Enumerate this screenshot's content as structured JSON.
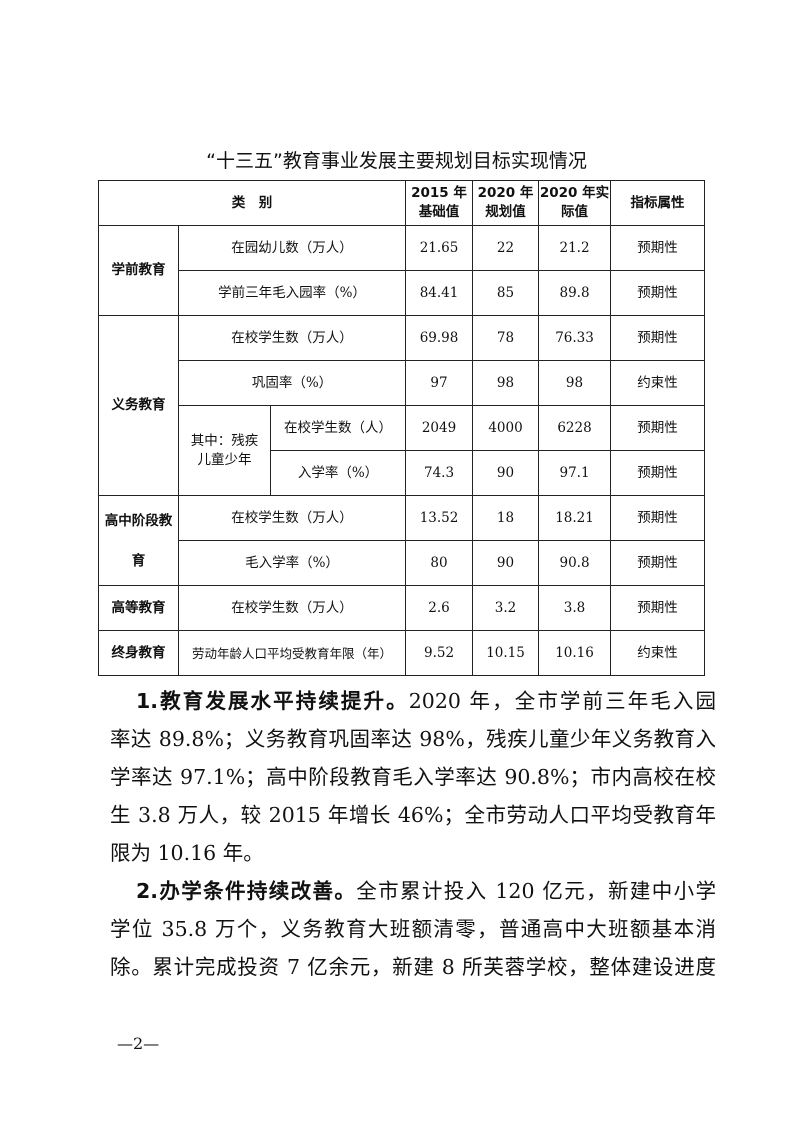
{
  "title": "“十三五”教育事业发展主要规划目标实现情况",
  "table": {
    "headers": {
      "category": "类　别",
      "base2015": "2015 年基础值",
      "plan2020": "2020 年规划值",
      "actual2020": "2020 年实际值",
      "attr": "指标属性"
    },
    "groups": {
      "preschool": "学前教育",
      "compulsory": "义务教育",
      "disabled": "其中：残疾儿童少年",
      "highschool": "高中阶段教育",
      "higher": "高等教育",
      "lifelong": "终身教育"
    },
    "rows": [
      {
        "item": "在园幼儿数（万人）",
        "base": "21.65",
        "plan": "22",
        "actual": "21.2",
        "attr": "预期性"
      },
      {
        "item": "学前三年毛入园率（%）",
        "base": "84.41",
        "plan": "85",
        "actual": "89.8",
        "attr": "预期性"
      },
      {
        "item": "在校学生数（万人）",
        "base": "69.98",
        "plan": "78",
        "actual": "76.33",
        "attr": "预期性"
      },
      {
        "item": "巩固率（%）",
        "base": "97",
        "plan": "98",
        "actual": "98",
        "attr": "约束性"
      },
      {
        "item": "在校学生数（人）",
        "base": "2049",
        "plan": "4000",
        "actual": "6228",
        "attr": "预期性"
      },
      {
        "item": "入学率（%）",
        "base": "74.3",
        "plan": "90",
        "actual": "97.1",
        "attr": "预期性"
      },
      {
        "item": "在校学生数（万人）",
        "base": "13.52",
        "plan": "18",
        "actual": "18.21",
        "attr": "预期性"
      },
      {
        "item": "毛入学率（%）",
        "base": "80",
        "plan": "90",
        "actual": "90.8",
        "attr": "预期性"
      },
      {
        "item": "在校学生数（万人）",
        "base": "2.6",
        "plan": "3.2",
        "actual": "3.8",
        "attr": "预期性"
      },
      {
        "item": "劳动年龄人口平均受教育年限（年）",
        "base": "9.52",
        "plan": "10.15",
        "actual": "10.16",
        "attr": "约束性"
      }
    ]
  },
  "paragraphs": [
    {
      "lead": "1.教育发展水平持续提升。",
      "lines": [
        "2020 年，全市学前三年毛入园",
        "率达 89.8%；义务教育巩固率达 98%，残疾儿童少年义务教育入",
        "学率达 97.1%；高中阶段教育毛入学率达 90.8%；市内高校在校",
        "生 3.8 万人，较 2015 年增长 46%；全市劳动人口平均受教育年",
        "限为 10.16 年。"
      ]
    },
    {
      "lead": "2.办学条件持续改善。",
      "lines": [
        "全市累计投入 120 亿元，新建中小学",
        "学位 35.8 万个，义务教育大班额清零，普通高中大班额基本消",
        "除。累计完成投资 7 亿余元，新建 8 所芙蓉学校，整体建设进度"
      ]
    }
  ],
  "page_number": "—2—"
}
